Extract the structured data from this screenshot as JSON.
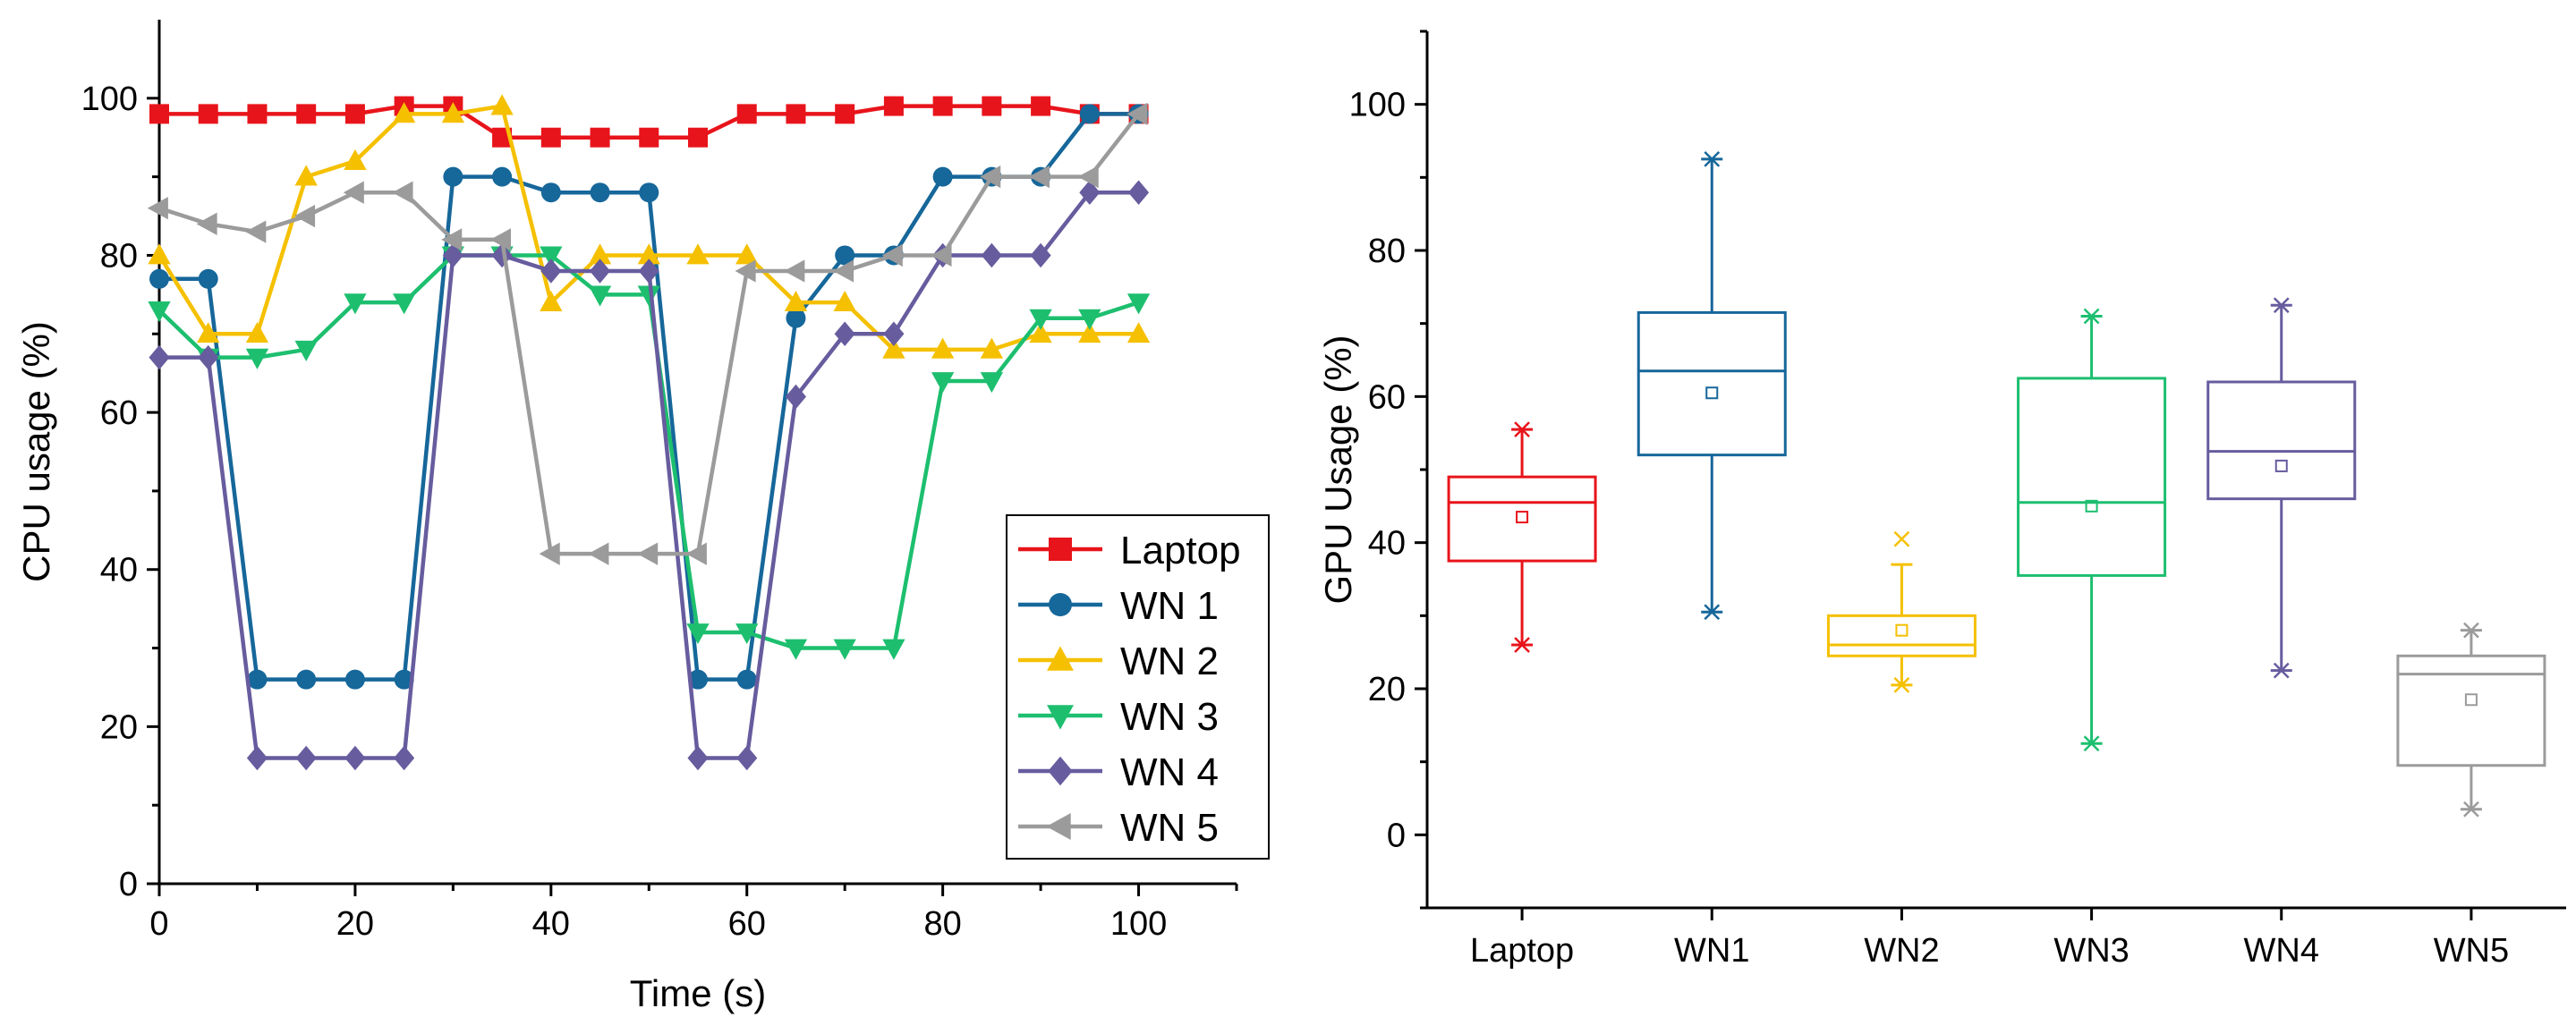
{
  "chart_data": [
    {
      "type": "line",
      "xlabel": "Time (s)",
      "ylabel": "CPU usage (%)",
      "xlim": [
        0,
        110
      ],
      "ylim": [
        0,
        110
      ],
      "xticks": [
        0,
        20,
        40,
        60,
        80,
        100
      ],
      "yticks": [
        0,
        20,
        40,
        60,
        80,
        100
      ],
      "legend_position": "bottom-right",
      "x": [
        0,
        5,
        10,
        15,
        20,
        25,
        30,
        35,
        40,
        45,
        50,
        55,
        60,
        65,
        70,
        75,
        80,
        85,
        90,
        95,
        100
      ],
      "series": [
        {
          "name": "Laptop",
          "color": "#e8141b",
          "marker": "square",
          "values": [
            98,
            98,
            98,
            98,
            98,
            99,
            99,
            95,
            95,
            95,
            95,
            95,
            98,
            98,
            98,
            99,
            99,
            99,
            99,
            98,
            98
          ]
        },
        {
          "name": "WN 1",
          "color": "#16679a",
          "marker": "circle",
          "values": [
            77,
            77,
            26,
            26,
            26,
            26,
            90,
            90,
            88,
            88,
            88,
            26,
            26,
            72,
            80,
            80,
            90,
            90,
            90,
            98,
            98
          ]
        },
        {
          "name": "WN 2",
          "color": "#f5c000",
          "marker": "triangle-up",
          "values": [
            80,
            70,
            70,
            90,
            92,
            98,
            98,
            99,
            74,
            80,
            80,
            80,
            80,
            74,
            74,
            68,
            68,
            68,
            70,
            70,
            70
          ]
        },
        {
          "name": "WN 3",
          "color": "#1dbf6f",
          "marker": "triangle-down",
          "values": [
            73,
            67,
            67,
            68,
            74,
            74,
            80,
            80,
            80,
            75,
            75,
            32,
            32,
            30,
            30,
            30,
            64,
            64,
            72,
            72,
            74
          ]
        },
        {
          "name": "WN 4",
          "color": "#675c9e",
          "marker": "diamond",
          "values": [
            67,
            67,
            16,
            16,
            16,
            16,
            80,
            80,
            78,
            78,
            78,
            16,
            16,
            62,
            70,
            70,
            80,
            80,
            80,
            88,
            88
          ]
        },
        {
          "name": "WN 5",
          "color": "#9b9b9b",
          "marker": "triangle-left",
          "values": [
            86,
            84,
            83,
            85,
            88,
            88,
            82,
            82,
            42,
            42,
            42,
            42,
            78,
            78,
            78,
            80,
            80,
            90,
            90,
            90,
            98
          ]
        }
      ]
    },
    {
      "type": "box",
      "xlabel": "",
      "ylabel": "GPU Usage (%)",
      "ylim": [
        -10,
        110
      ],
      "yticks": [
        0,
        20,
        40,
        60,
        80,
        100
      ],
      "categories": [
        "Laptop",
        "WN1",
        "WN2",
        "WN3",
        "WN4",
        "WN5"
      ],
      "boxes": [
        {
          "name": "Laptop",
          "color": "#e8141b",
          "whisker_low": 26,
          "q1": 37.5,
          "median": 45.5,
          "q3": 49,
          "whisker_high": 55.5,
          "mean": 43.5,
          "min": 26,
          "max": 55.5
        },
        {
          "name": "WN1",
          "color": "#16679a",
          "whisker_low": 30.5,
          "q1": 52,
          "median": 63.5,
          "q3": 71.5,
          "whisker_high": 92.5,
          "mean": 60.5,
          "min": 30.5,
          "max": 92.5
        },
        {
          "name": "WN2",
          "color": "#f5c000",
          "whisker_low": 20.5,
          "q1": 24.5,
          "median": 26,
          "q3": 30,
          "whisker_high": 37,
          "mean": 28,
          "min": 20.5,
          "max": 40.5
        },
        {
          "name": "WN3",
          "color": "#1dbf6f",
          "whisker_low": 12.5,
          "q1": 35.5,
          "median": 45.5,
          "q3": 62.5,
          "whisker_high": 71,
          "mean": 45,
          "min": 12.5,
          "max": 71
        },
        {
          "name": "WN4",
          "color": "#675c9e",
          "whisker_low": 22.5,
          "q1": 46,
          "median": 52.5,
          "q3": 62,
          "whisker_high": 72.5,
          "mean": 50.5,
          "min": 22.5,
          "max": 72.5
        },
        {
          "name": "WN5",
          "color": "#9b9b9b",
          "whisker_low": 3.5,
          "q1": 9.5,
          "median": 22,
          "q3": 24.5,
          "whisker_high": 28,
          "mean": 18.5,
          "min": 3.5,
          "max": 28
        }
      ]
    }
  ]
}
